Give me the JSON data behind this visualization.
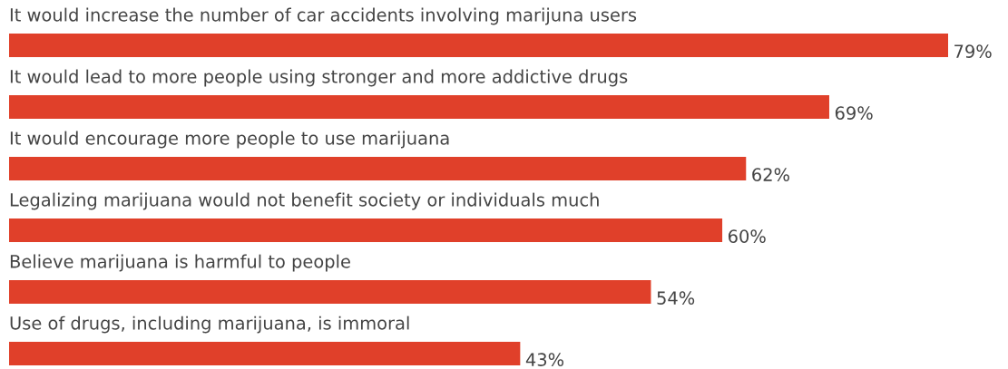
{
  "chart_data": {
    "type": "bar",
    "orientation": "horizontal",
    "categories": [
      "It would increase the number of car accidents involving marijuna users",
      "It would lead to more people using stronger and more addictive drugs",
      "It would encourage more people to use marijuana",
      "Legalizing marijuana would not benefit society or individuals much",
      "Believe marijuana is harmful to people",
      "Use of drugs, including marijuana, is immoral"
    ],
    "values": [
      79,
      69,
      62,
      60,
      54,
      43
    ],
    "value_labels": [
      "79%",
      "69%",
      "62%",
      "60%",
      "54%",
      "43%"
    ],
    "color": "#e0402a"
  }
}
